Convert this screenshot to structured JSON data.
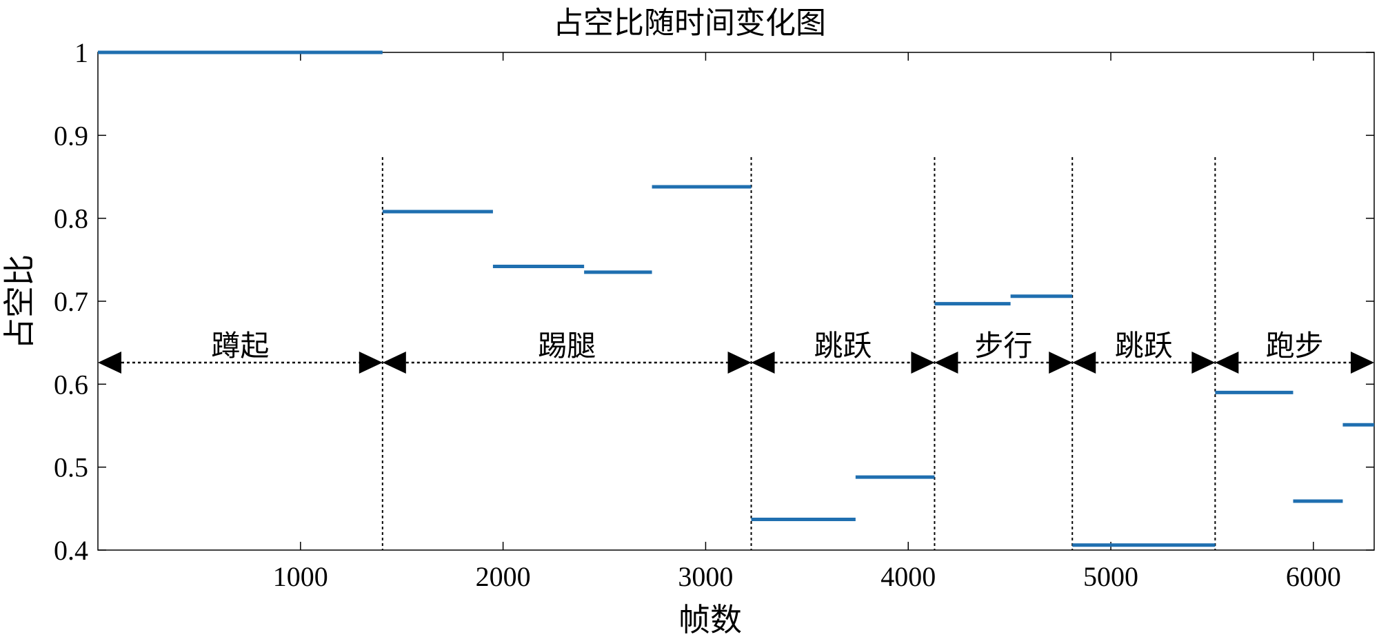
{
  "chart_data": {
    "type": "line",
    "title": "占空比随时间变化图",
    "xlabel": "帧数",
    "ylabel": "占空比",
    "xlim": [
      0,
      6300
    ],
    "ylim": [
      0.4,
      1.0
    ],
    "xticks": [
      1000,
      2000,
      3000,
      4000,
      5000,
      6000
    ],
    "yticks": [
      0.4,
      0.5,
      0.6,
      0.7,
      0.8,
      0.9,
      1.0
    ],
    "ytick_labels": [
      "0.4",
      "0.5",
      "0.6",
      "0.7",
      "0.8",
      "0.9",
      "1"
    ],
    "grid": false,
    "series_color": "#1f6fb0",
    "segments": [
      {
        "x0": 0,
        "x1": 1405,
        "y": 1.0
      },
      {
        "x0": 1405,
        "x1": 1950,
        "y": 0.808
      },
      {
        "x0": 1950,
        "x1": 2400,
        "y": 0.742
      },
      {
        "x0": 2400,
        "x1": 2735,
        "y": 0.735
      },
      {
        "x0": 2735,
        "x1": 3225,
        "y": 0.838
      },
      {
        "x0": 3225,
        "x1": 3740,
        "y": 0.437
      },
      {
        "x0": 3740,
        "x1": 4130,
        "y": 0.488
      },
      {
        "x0": 4130,
        "x1": 4505,
        "y": 0.697
      },
      {
        "x0": 4505,
        "x1": 4810,
        "y": 0.706
      },
      {
        "x0": 4810,
        "x1": 5515,
        "y": 0.406
      },
      {
        "x0": 5515,
        "x1": 5900,
        "y": 0.59
      },
      {
        "x0": 5900,
        "x1": 6145,
        "y": 0.459
      },
      {
        "x0": 6145,
        "x1": 6300,
        "y": 0.551
      }
    ],
    "phase_boundaries": [
      1405,
      3225,
      4130,
      4810,
      5515
    ],
    "phase_arrow_y": 0.626,
    "phases": [
      {
        "label": "蹲起",
        "x0": 0,
        "x1": 1405
      },
      {
        "label": "踢腿",
        "x0": 1405,
        "x1": 3225
      },
      {
        "label": "跳跃",
        "x0": 3225,
        "x1": 4130
      },
      {
        "label": "步行",
        "x0": 4130,
        "x1": 4810
      },
      {
        "label": "跳跃",
        "x0": 4810,
        "x1": 5515
      },
      {
        "label": "跑步",
        "x0": 5515,
        "x1": 6300
      }
    ]
  }
}
